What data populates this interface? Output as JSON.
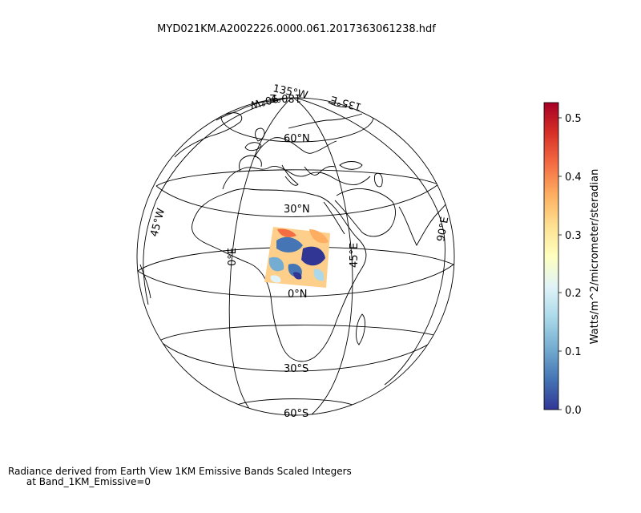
{
  "title": "MYD021KM.A2002226.0000.061.2017363061238.hdf",
  "caption": {
    "line1": "Radiance derived from Earth View 1KM Emissive Bands Scaled Integers",
    "line2": "      at Band_1KM_Emissive=0"
  },
  "map": {
    "projection": "orthographic",
    "center_lon": 17,
    "center_lat": 20,
    "graticule_labels": {
      "lat": [
        "60°N",
        "30°N",
        "0°N",
        "30°S",
        "60°S"
      ],
      "lon": [
        "45°W",
        "0°E",
        "45°E",
        "90°E",
        "135°W",
        "180°E",
        "135°E",
        "90°W"
      ]
    }
  },
  "colorbar": {
    "label": "Watts/m^2/micrometer/steradian",
    "ticks": [
      "0.0",
      "0.1",
      "0.2",
      "0.3",
      "0.4",
      "0.5"
    ],
    "min": 0.0,
    "max": 0.525,
    "colormap": "RdYlBu_r",
    "colors": [
      "#313695",
      "#4575b4",
      "#74add1",
      "#abd9e9",
      "#e0f3f8",
      "#ffffbf",
      "#fee090",
      "#fdae61",
      "#f46d43",
      "#d73027",
      "#a50026"
    ]
  },
  "swath": {
    "approx_bounds": "approximately 2°N–15°N, 33°E–44°E"
  }
}
